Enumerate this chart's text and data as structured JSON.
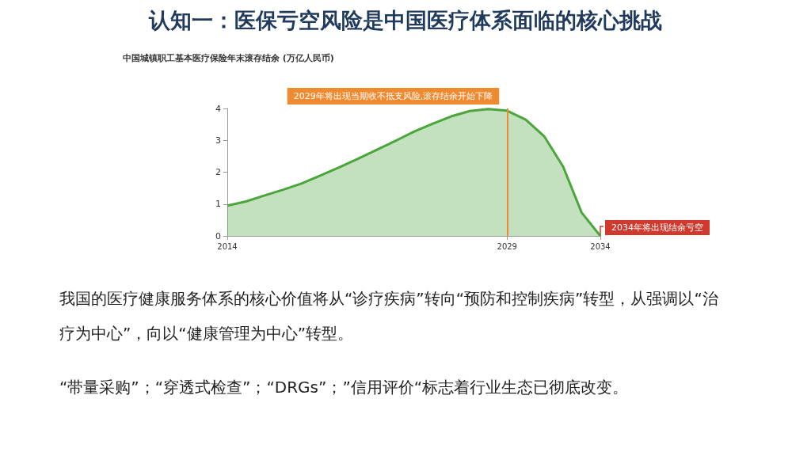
{
  "chart_data": {
    "type": "area",
    "title": "认知一：医保亏空风险是中国医疗体系面临的核心挑战",
    "subtitle": "中国城镇职工基本医疗保险年末滚存结余 (万亿人民币)",
    "x": [
      2014,
      2015,
      2016,
      2017,
      2018,
      2019,
      2020,
      2021,
      2022,
      2023,
      2024,
      2025,
      2026,
      2027,
      2028,
      2029,
      2030,
      2031,
      2032,
      2033,
      2034
    ],
    "series": [
      {
        "color": "#4aa53a",
        "values": [
          0.95,
          1.08,
          1.27,
          1.45,
          1.65,
          1.9,
          2.15,
          2.42,
          2.7,
          2.98,
          3.27,
          3.52,
          3.75,
          3.92,
          3.98,
          3.93,
          3.65,
          3.12,
          2.18,
          0.73,
          0
        ]
      }
    ],
    "xlim": [
      2014,
      2034
    ],
    "xticks": [
      2014,
      2029,
      2034
    ],
    "ylim": [
      0,
      4
    ],
    "yticks": [
      0,
      1,
      2,
      3,
      4
    ],
    "grid": false,
    "marker": "none",
    "ref_lines": [
      {
        "axis": "x",
        "value": 2029,
        "label": "2029年将出现当期收不抵支风险,滚存结余开始下降",
        "color": "#f08a30"
      }
    ],
    "annotations": [
      {
        "text": "2034年将出现结余亏空",
        "x": 2034,
        "y": 0
      },
      "我国的医疗健康服务体系的核心价值将从“诊疗疾病”转向“预防和控制疾病”转型，从强调以“治疗为中心”，向以“健康管理为中心”转型。",
      "“带量采购”；“穿透式检查”；“DRGs”；”信用评价“标志着行业生态已彻底改变。"
    ]
  }
}
